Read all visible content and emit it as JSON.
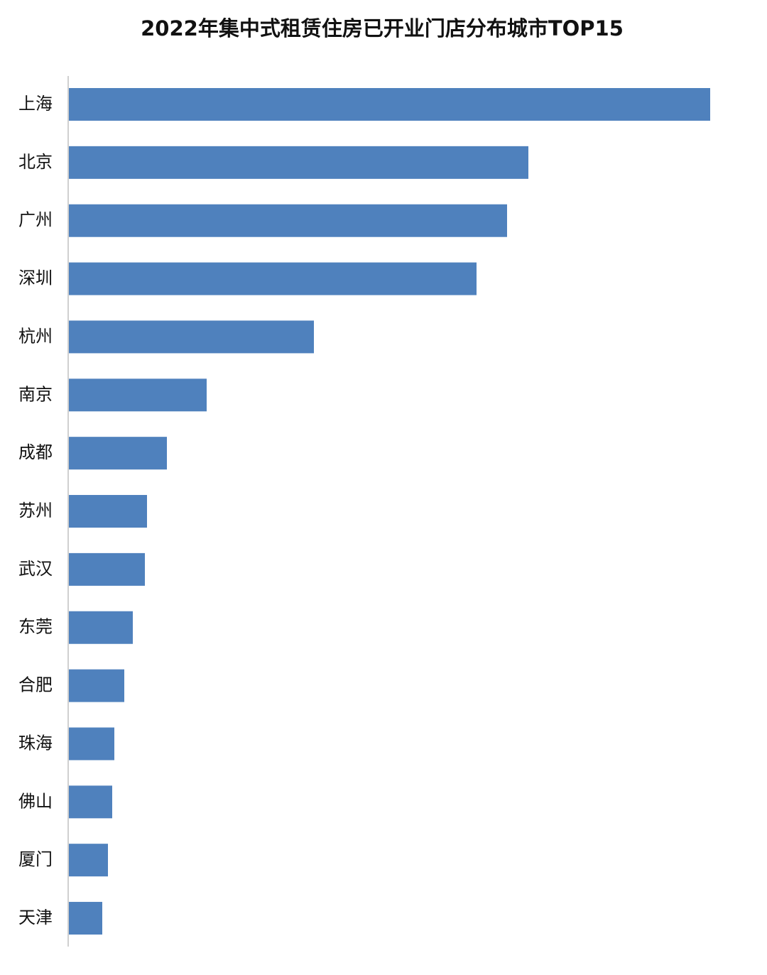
{
  "chart_data": {
    "type": "bar",
    "orientation": "horizontal",
    "title": "2022年集中式租赁住房已开业门店分布城市TOP15",
    "categories": [
      "上海",
      "北京",
      "广州",
      "深圳",
      "杭州",
      "南京",
      "成都",
      "苏州",
      "武汉",
      "东莞",
      "合肥",
      "珠海",
      "佛山",
      "厦门",
      "天津"
    ],
    "values": [
      903,
      647,
      617,
      574,
      345,
      194,
      138,
      110,
      107,
      90,
      78,
      64,
      61,
      55,
      47
    ],
    "color": "#4f81bd"
  }
}
